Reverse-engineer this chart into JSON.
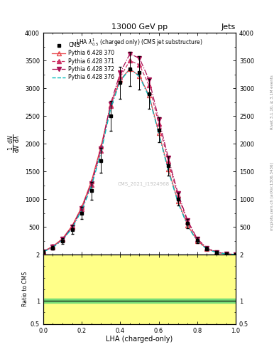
{
  "title": "13000 GeV pp",
  "title_right": "Jets",
  "inner_title": "LHA $\\lambda^{1}_{0.5}$ (charged only) (CMS jet substructure)",
  "xlabel": "LHA (charged-only)",
  "watermark": "CMS_2021_I1924968",
  "right_label": "mcplots.cern.ch [arXiv:1306.3436]",
  "right_label2": "Rivet 3.1.10, ≥ 3.1M events",
  "lha_x": [
    0.0,
    0.05,
    0.1,
    0.15,
    0.2,
    0.25,
    0.3,
    0.35,
    0.4,
    0.45,
    0.5,
    0.55,
    0.6,
    0.65,
    0.7,
    0.75,
    0.8,
    0.85,
    0.9,
    0.95,
    1.0
  ],
  "cms_y": [
    50,
    120,
    250,
    450,
    750,
    1150,
    1700,
    2500,
    3100,
    3350,
    3280,
    2900,
    2250,
    1600,
    1000,
    560,
    260,
    110,
    42,
    14,
    3
  ],
  "cms_yerr": [
    15,
    30,
    50,
    80,
    110,
    160,
    220,
    270,
    290,
    310,
    300,
    270,
    220,
    170,
    120,
    80,
    50,
    35,
    22,
    12,
    4
  ],
  "p370_y": [
    60,
    150,
    290,
    520,
    860,
    1320,
    1950,
    2700,
    3150,
    3350,
    3220,
    2870,
    2200,
    1540,
    960,
    530,
    250,
    105,
    40,
    13,
    3
  ],
  "p371_y": [
    55,
    135,
    270,
    490,
    820,
    1260,
    1870,
    2680,
    3200,
    3500,
    3420,
    3050,
    2360,
    1680,
    1060,
    590,
    275,
    115,
    44,
    14,
    3
  ],
  "p372_y": [
    58,
    140,
    280,
    505,
    840,
    1290,
    1910,
    2720,
    3280,
    3620,
    3540,
    3150,
    2440,
    1740,
    1100,
    615,
    285,
    120,
    46,
    15,
    3
  ],
  "p376_y": [
    52,
    130,
    265,
    475,
    800,
    1230,
    1840,
    2640,
    3130,
    3350,
    3210,
    2840,
    2180,
    1510,
    940,
    515,
    240,
    100,
    38,
    12,
    3
  ],
  "colors": {
    "cms": "#000000",
    "p370": "#e8474c",
    "p371": "#cc3366",
    "p372": "#aa1155",
    "p376": "#00bbbb",
    "ratio_green": "#77dd77",
    "ratio_yellow": "#ffff88"
  },
  "ylim_main": [
    0,
    4000
  ],
  "ylim_ratio": [
    0.5,
    2.0
  ],
  "yticks_main": [
    500,
    1000,
    1500,
    2000,
    2500,
    3000,
    3500,
    4000
  ],
  "yticks_ratio_show": [
    2,
    1,
    0.5
  ],
  "bg_color": "#ffffff"
}
